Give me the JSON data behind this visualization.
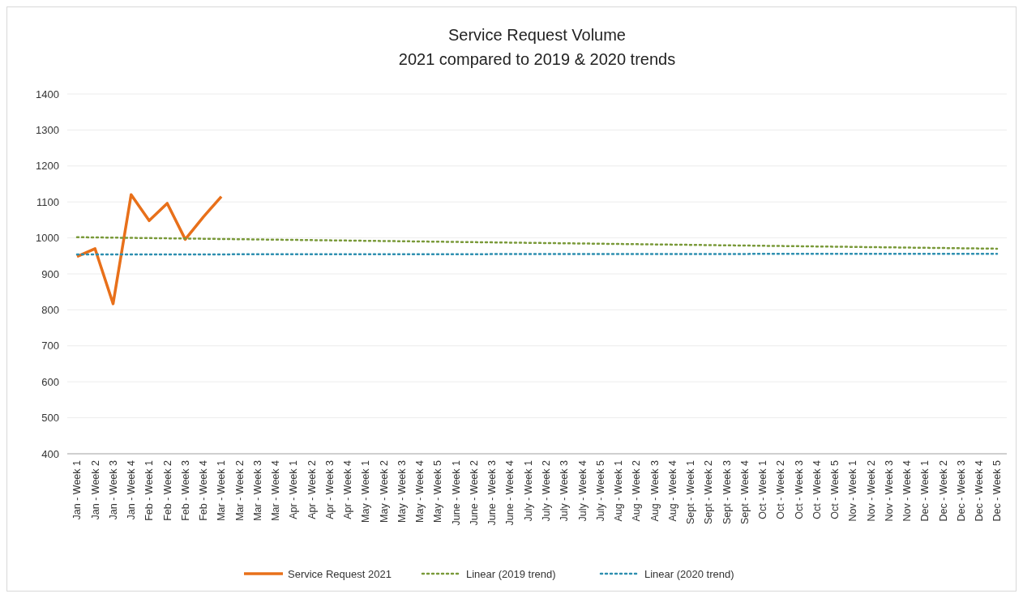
{
  "chart_data": {
    "type": "line",
    "title": "Service Request Volume\n2021 compared to 2019 & 2020 trends",
    "categories": [
      "Jan - Week 1",
      "Jan - Week 2",
      "Jan - Week 3",
      "Jan - Week 4",
      "Feb - Week 1",
      "Feb - Week 2",
      "Feb - Week 3",
      "Feb - Week 4",
      "Mar - Week 1",
      "Mar - Week 2",
      "Mar - Week 3",
      "Mar - Week 4",
      "Apr - Week 1",
      "Apr - Week 2",
      "Apr - Week 3",
      "Apr - Week 4",
      "May - Week 1",
      "May - Week 2",
      "May - Week 3",
      "May - Week 4",
      "May - Week 5",
      "June - Week 1",
      "June - Week 2",
      "June - Week 3",
      "June - Week 4",
      "July - Week 1",
      "July - Week 2",
      "July - Week 3",
      "July - Week 4",
      "July - Week 5",
      "Aug - Week 1",
      "Aug - Week 2",
      "Aug - Week 3",
      "Aug - Week 4",
      "Sept - Week 1",
      "Sept - Week 2",
      "Sept - Week 3",
      "Sept - Week 4",
      "Oct - Week 1",
      "Oct - Week 2",
      "Oct - Week 3",
      "Oct - Week 4",
      "Oct - Week 5",
      "Nov - Week 1",
      "Nov - Week 2",
      "Nov - Week 3",
      "Nov - Week 4",
      "Dec - Week 1",
      "Dec - Week 2",
      "Dec - Week 3",
      "Dec - Week 4",
      "Dec - Week 5"
    ],
    "series": [
      {
        "name": "Service Request 2021",
        "color": "#e8701a",
        "line_style": "solid",
        "values": [
          948,
          970,
          817,
          1120,
          1048,
          1096,
          996,
          1058,
          1115,
          null,
          null,
          null,
          null,
          null,
          null,
          null,
          null,
          null,
          null,
          null,
          null,
          null,
          null,
          null,
          null,
          null,
          null,
          null,
          null,
          null,
          null,
          null,
          null,
          null,
          null,
          null,
          null,
          null,
          null,
          null,
          null,
          null,
          null,
          null,
          null,
          null,
          null,
          null,
          null,
          null,
          null,
          null
        ]
      },
      {
        "name": "Linear (2019 trend)",
        "color": "#7a9a3a",
        "line_style": "dotted",
        "x": [
          "Jan - Week 1",
          "Dec - Week 5"
        ],
        "values": [
          1002,
          970
        ]
      },
      {
        "name": "Linear (2020 trend)",
        "color": "#2e8fb0",
        "line_style": "dotted",
        "x": [
          "Jan - Week 1",
          "Dec - Week 5"
        ],
        "values": [
          954,
          956
        ]
      }
    ],
    "ylim": [
      400,
      1400
    ],
    "yticks": [
      400,
      500,
      600,
      700,
      800,
      900,
      1000,
      1100,
      1200,
      1300,
      1400
    ],
    "grid": "y",
    "legend": "bottom"
  }
}
